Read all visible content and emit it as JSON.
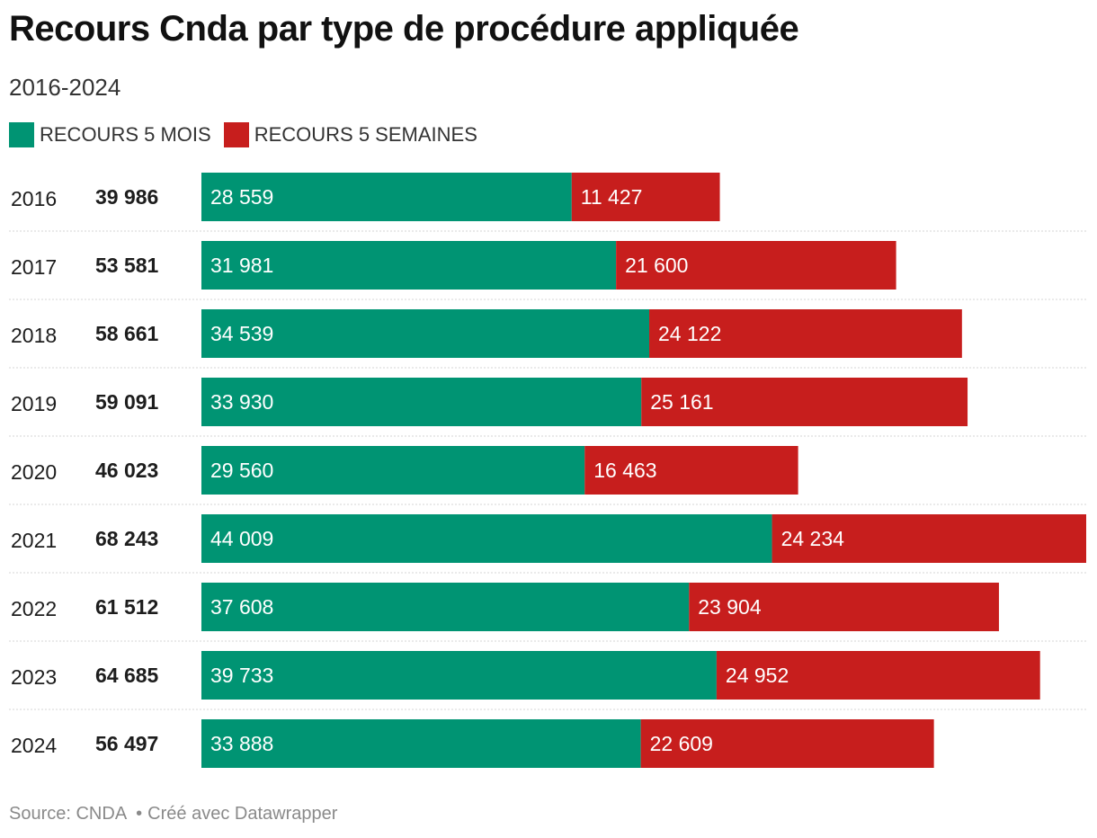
{
  "title": "Recours Cnda par type de procédure appliquée",
  "subtitle": "2016-2024",
  "legend": [
    {
      "label": "RECOURS 5 MOIS",
      "color": "#009473"
    },
    {
      "label": "RECOURS 5 SEMAINES",
      "color": "#c71e1d"
    }
  ],
  "chart_data": {
    "type": "bar",
    "orientation": "horizontal",
    "stacked": true,
    "categories": [
      "2016",
      "2017",
      "2018",
      "2019",
      "2020",
      "2021",
      "2022",
      "2023",
      "2024"
    ],
    "totals": [
      "39 986",
      "53 581",
      "58 661",
      "59 091",
      "46 023",
      "68 243",
      "61 512",
      "64 685",
      "56 497"
    ],
    "series": [
      {
        "name": "RECOURS 5 MOIS",
        "color": "#009473",
        "values": [
          28559,
          31981,
          34539,
          33930,
          29560,
          44009,
          37608,
          39733,
          33888
        ],
        "labels": [
          "28 559",
          "31 981",
          "34 539",
          "33 930",
          "29 560",
          "44 009",
          "37 608",
          "39 733",
          "33 888"
        ]
      },
      {
        "name": "RECOURS 5 SEMAINES",
        "color": "#c71e1d",
        "values": [
          11427,
          21600,
          24122,
          25161,
          16463,
          24234,
          23904,
          24952,
          22609
        ],
        "labels": [
          "11 427",
          "21 600",
          "24 122",
          "25 161",
          "16 463",
          "24 234",
          "23 904",
          "24 952",
          "22 609"
        ]
      }
    ],
    "xlim": [
      0,
      68243
    ],
    "grid": false
  },
  "footer": {
    "source": "Source: CNDA",
    "credit": "Créé avec Datawrapper"
  }
}
